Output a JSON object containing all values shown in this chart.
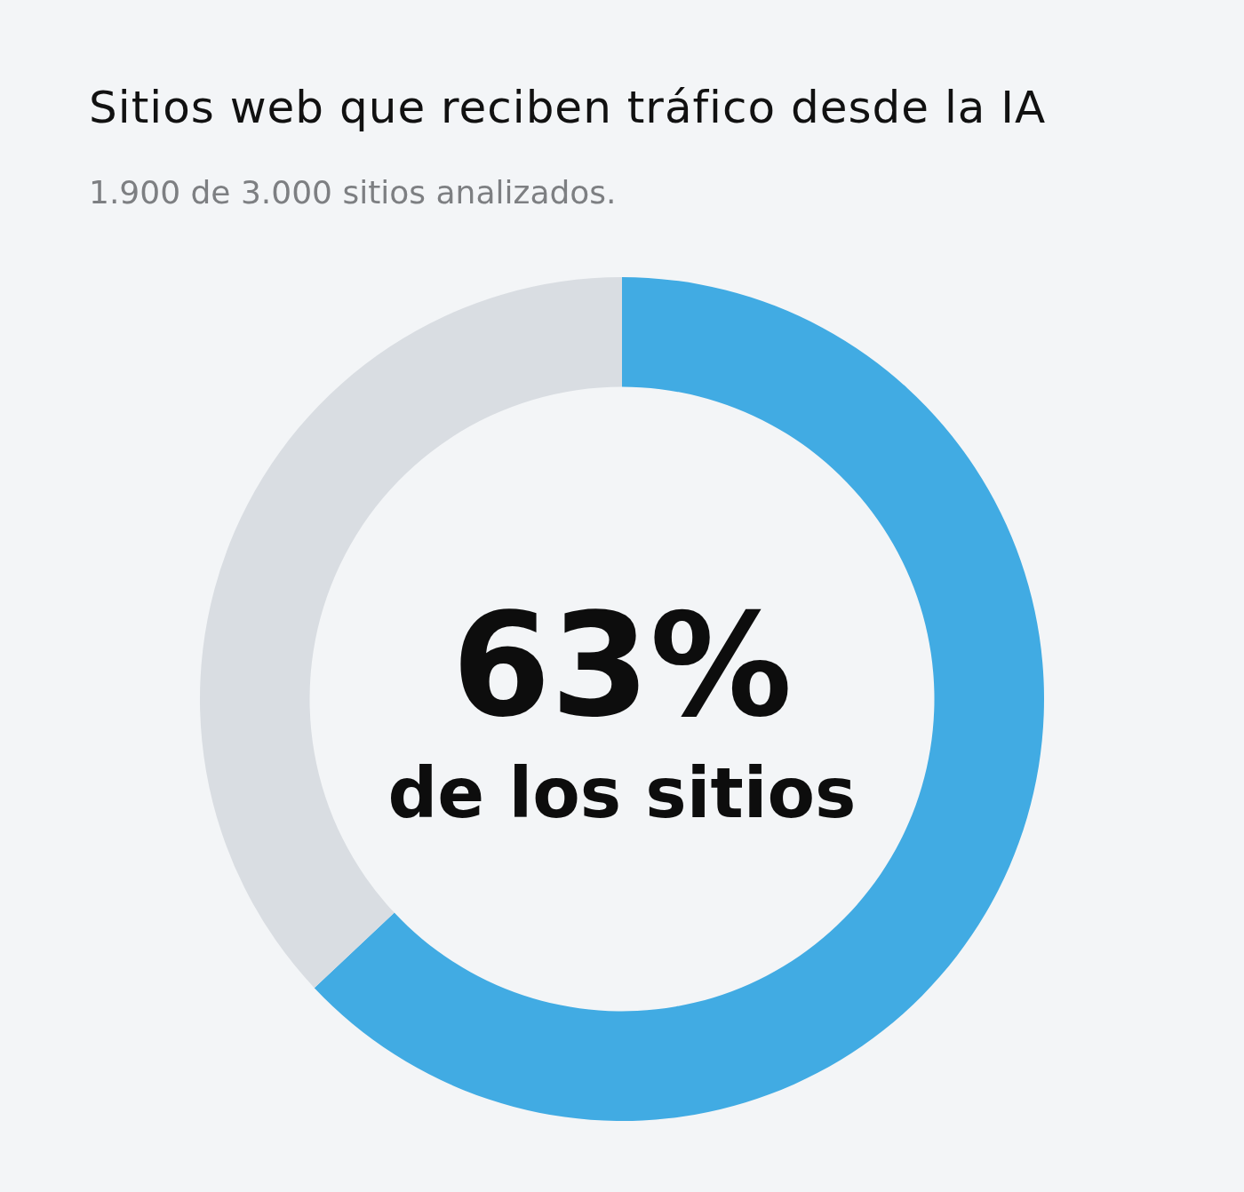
{
  "chart_data": {
    "type": "donut",
    "title": "Sitios web que reciben tráfico desde la IA",
    "subtitle": "1.900 de 3.000 sitios analizados.",
    "categories": [
      null,
      null
    ],
    "values": [
      63,
      37
    ],
    "colors": [
      "#41abe3",
      "#d9dde2"
    ],
    "value_labels": [
      "63%",
      null
    ],
    "annotations": [
      "de los sitios"
    ],
    "legend": false
  }
}
